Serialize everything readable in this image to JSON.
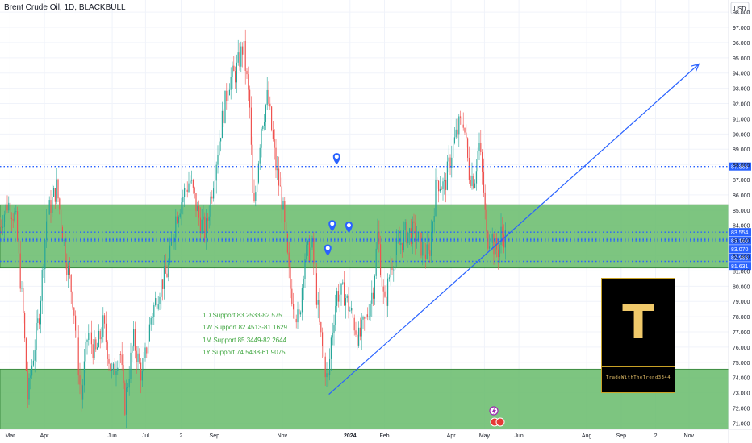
{
  "chart_title": "Brent Crude Oil, 1D, BLACKBULL",
  "currency": "USD",
  "supports": [
    "1D Support 83.2533-82.575",
    "1W Support 82.4513-81.1629",
    "1M Support 85.3449-82.2644",
    "1Y Support 74.5438-61.9075"
  ],
  "logo": {
    "letter": "T",
    "caption": "TradeWithTheTrend3344"
  },
  "colors": {
    "bull": "#26a69a",
    "bear": "#ef5350",
    "zone_fill": "#66bb6a",
    "zone_border": "#2e7d32",
    "dotted_line": "#2962ff",
    "trend_line": "#2962ff",
    "support_text": "#3fa63f"
  },
  "chart_data": {
    "type": "candlestick",
    "title": "Brent Crude Oil, 1D, BLACKBULL",
    "y_axis_unit": "USD",
    "ylim": [
      70.6,
      98.8
    ],
    "y_ticks": [
      71,
      72,
      73,
      74,
      75,
      76,
      77,
      78,
      79,
      80,
      81,
      82,
      83,
      84,
      85,
      86,
      87,
      88,
      89,
      90,
      91,
      92,
      93,
      94,
      95,
      96,
      97,
      98
    ],
    "x_date_range": [
      "2023-02-20",
      "2024-11-20"
    ],
    "x_tick_labels": [
      {
        "label": "Mar",
        "date": "2023-03-01"
      },
      {
        "label": "Apr",
        "date": "2023-04-01"
      },
      {
        "label": "Jun",
        "date": "2023-06-01"
      },
      {
        "label": "Jul",
        "date": "2023-07-01"
      },
      {
        "label": "2",
        "date": "2023-08-02"
      },
      {
        "label": "Sep",
        "date": "2023-09-01"
      },
      {
        "label": "Nov",
        "date": "2023-11-01"
      },
      {
        "label": "2024",
        "date": "2024-01-01"
      },
      {
        "label": "Feb",
        "date": "2024-02-01"
      },
      {
        "label": "Apr",
        "date": "2024-04-01"
      },
      {
        "label": "May",
        "date": "2024-05-01"
      },
      {
        "label": "Jun",
        "date": "2024-06-01"
      },
      {
        "label": "Aug",
        "date": "2024-08-01"
      },
      {
        "label": "Sep",
        "date": "2024-09-01"
      },
      {
        "label": "2",
        "date": "2024-10-02"
      },
      {
        "label": "Nov",
        "date": "2024-11-01"
      }
    ],
    "price_path": [
      [
        "2023-02-20",
        84.0
      ],
      [
        "2023-02-27",
        85.5
      ],
      [
        "2023-03-06",
        84.5
      ],
      [
        "2023-03-13",
        78.0
      ],
      [
        "2023-03-17",
        72.5
      ],
      [
        "2023-03-20",
        74.5
      ],
      [
        "2023-03-27",
        78.0
      ],
      [
        "2023-04-03",
        84.5
      ],
      [
        "2023-04-12",
        86.5
      ],
      [
        "2023-04-20",
        82.0
      ],
      [
        "2023-04-27",
        79.0
      ],
      [
        "2023-05-04",
        72.5
      ],
      [
        "2023-05-10",
        77.0
      ],
      [
        "2023-05-17",
        75.5
      ],
      [
        "2023-05-24",
        77.5
      ],
      [
        "2023-06-01",
        74.0
      ],
      [
        "2023-06-08",
        76.0
      ],
      [
        "2023-06-12",
        72.0
      ],
      [
        "2023-06-20",
        76.5
      ],
      [
        "2023-06-28",
        74.0
      ],
      [
        "2023-07-06",
        78.0
      ],
      [
        "2023-07-14",
        80.0
      ],
      [
        "2023-07-21",
        81.0
      ],
      [
        "2023-07-28",
        84.5
      ],
      [
        "2023-08-04",
        86.0
      ],
      [
        "2023-08-10",
        87.0
      ],
      [
        "2023-08-18",
        84.5
      ],
      [
        "2023-08-24",
        83.5
      ],
      [
        "2023-08-31",
        87.0
      ],
      [
        "2023-09-07",
        90.5
      ],
      [
        "2023-09-14",
        93.5
      ],
      [
        "2023-09-20",
        94.0
      ],
      [
        "2023-09-27",
        95.8
      ],
      [
        "2023-10-03",
        91.5
      ],
      [
        "2023-10-06",
        84.5
      ],
      [
        "2023-10-13",
        90.5
      ],
      [
        "2023-10-19",
        92.5
      ],
      [
        "2023-10-26",
        88.0
      ],
      [
        "2023-11-01",
        85.5
      ],
      [
        "2023-11-08",
        80.0
      ],
      [
        "2023-11-16",
        77.5
      ],
      [
        "2023-11-21",
        82.0
      ],
      [
        "2023-11-28",
        82.5
      ],
      [
        "2023-12-05",
        77.0
      ],
      [
        "2023-12-12",
        73.5
      ],
      [
        "2023-12-15",
        76.5
      ],
      [
        "2023-12-20",
        79.5
      ],
      [
        "2023-12-27",
        79.5
      ],
      [
        "2024-01-03",
        78.0
      ],
      [
        "2024-01-09",
        76.5
      ],
      [
        "2024-01-16",
        78.0
      ],
      [
        "2024-01-22",
        80.0
      ],
      [
        "2024-01-26",
        83.5
      ],
      [
        "2024-02-01",
        78.5
      ],
      [
        "2024-02-07",
        81.5
      ],
      [
        "2024-02-13",
        82.5
      ],
      [
        "2024-02-20",
        83.5
      ],
      [
        "2024-02-28",
        83.5
      ],
      [
        "2024-03-06",
        82.5
      ],
      [
        "2024-03-12",
        81.9
      ],
      [
        "2024-03-19",
        87.0
      ],
      [
        "2024-03-26",
        86.5
      ],
      [
        "2024-04-02",
        89.0
      ],
      [
        "2024-04-08",
        90.5
      ],
      [
        "2024-04-12",
        91.0
      ],
      [
        "2024-04-17",
        87.5
      ],
      [
        "2024-04-22",
        87.0
      ],
      [
        "2024-04-26",
        89.5
      ],
      [
        "2024-04-30",
        86.5
      ],
      [
        "2024-05-03",
        83.0
      ],
      [
        "2024-05-07",
        83.5
      ],
      [
        "2024-05-10",
        82.5
      ],
      [
        "2024-05-14",
        82.4
      ],
      [
        "2024-05-16",
        83.5
      ],
      [
        "2024-05-20",
        83.2
      ]
    ],
    "price_path_note": "Approximate closing path read from the candles.",
    "support_zones": [
      {
        "name": "Upper zone",
        "from": 81.2,
        "to": 85.35
      },
      {
        "name": "Lower zone",
        "from": 70.6,
        "to": 74.55
      }
    ],
    "horizontal_levels": [
      {
        "value": 87.863,
        "label": "87.863"
      },
      {
        "value": 83.554,
        "label": "83.554"
      },
      {
        "value": 83.16,
        "label": "83.160"
      },
      {
        "value": 83.07,
        "label": "83.070"
      },
      {
        "value": 82.983,
        "label": "82.983"
      },
      {
        "value": 81.631,
        "label": "81.631"
      }
    ],
    "trend_line": {
      "from": {
        "date": "2023-12-13",
        "value": 72.9
      },
      "to": {
        "date": "2024-11-10",
        "value": 94.6
      }
    },
    "markers": [
      {
        "date": "2023-12-20",
        "value": 88.0
      },
      {
        "date": "2023-12-16",
        "value": 83.6
      },
      {
        "date": "2023-12-31",
        "value": 83.5
      },
      {
        "date": "2023-12-12",
        "value": 82.0
      }
    ],
    "grid": true
  }
}
